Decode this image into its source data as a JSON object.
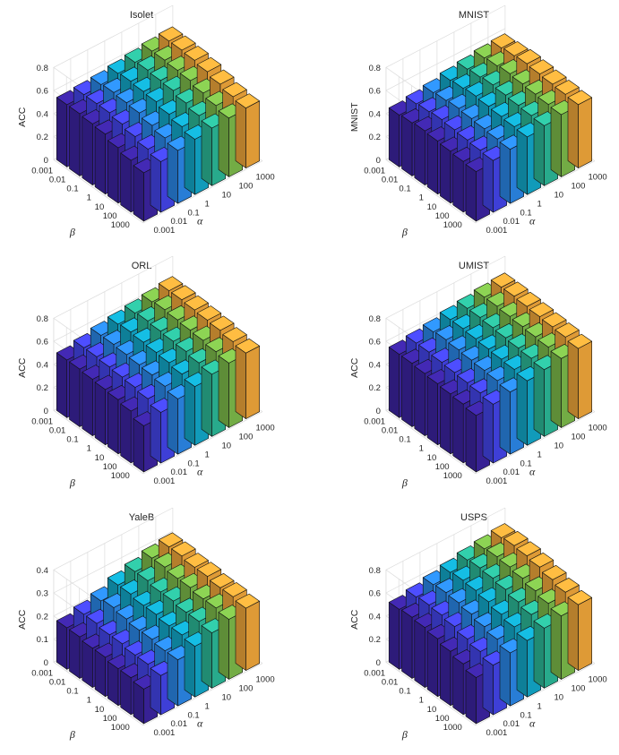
{
  "figure": {
    "greek_labels": {
      "alpha": "α",
      "beta": "β"
    },
    "colors": [
      "#3e26a8",
      "#4748f4",
      "#2d8ef3",
      "#13b0d3",
      "#2ec19f",
      "#83c44e",
      "#fcaf3d",
      "#f8f91f"
    ]
  },
  "chart_data": [
    {
      "type": "bar3d",
      "title": "Isolet",
      "zlabel": "ACC",
      "xlabel": "α",
      "ylabel": "β",
      "x_categories": [
        "0.001",
        "0.01",
        "0.1",
        "1",
        "10",
        "100",
        "1000"
      ],
      "y_categories": [
        "0.001",
        "0.01",
        "0.1",
        "1",
        "10",
        "100",
        "1000"
      ],
      "zlim": [
        0,
        0.8
      ],
      "zticks": [
        0,
        0.2,
        0.4,
        0.6,
        0.8
      ],
      "zticklabels": [
        "0",
        "0.2",
        "0.4",
        "0.6",
        "0.8"
      ],
      "grid": true,
      "values": [
        [
          0.54,
          0.55,
          0.56,
          0.58,
          0.6,
          0.62,
          0.63
        ],
        [
          0.54,
          0.55,
          0.57,
          0.59,
          0.61,
          0.62,
          0.63
        ],
        [
          0.53,
          0.55,
          0.56,
          0.58,
          0.6,
          0.61,
          0.62
        ],
        [
          0.52,
          0.53,
          0.55,
          0.57,
          0.59,
          0.6,
          0.6
        ],
        [
          0.48,
          0.5,
          0.52,
          0.54,
          0.56,
          0.57,
          0.57
        ],
        [
          0.45,
          0.47,
          0.49,
          0.51,
          0.53,
          0.54,
          0.54
        ],
        [
          0.42,
          0.44,
          0.46,
          0.48,
          0.5,
          0.51,
          0.52
        ]
      ]
    },
    {
      "type": "bar3d",
      "title": "MNIST",
      "zlabel": "MNIST",
      "xlabel": "α",
      "ylabel": "β",
      "x_categories": [
        "0.001",
        "0.01",
        "0.1",
        "1",
        "10",
        "100",
        "1000"
      ],
      "y_categories": [
        "0.001",
        "0.01",
        "0.1",
        "1",
        "10",
        "100",
        "1000"
      ],
      "zlim": [
        0,
        0.8
      ],
      "zticks": [
        0,
        0.2,
        0.4,
        0.6,
        0.8
      ],
      "zticklabels": [
        "0",
        "0.2",
        "0.4",
        "0.6",
        "0.8"
      ],
      "grid": true,
      "values": [
        [
          0.45,
          0.47,
          0.49,
          0.52,
          0.54,
          0.56,
          0.57
        ],
        [
          0.46,
          0.48,
          0.5,
          0.53,
          0.55,
          0.57,
          0.58
        ],
        [
          0.47,
          0.49,
          0.51,
          0.54,
          0.56,
          0.58,
          0.59
        ],
        [
          0.46,
          0.48,
          0.5,
          0.53,
          0.55,
          0.57,
          0.58
        ],
        [
          0.45,
          0.47,
          0.49,
          0.52,
          0.54,
          0.56,
          0.57
        ],
        [
          0.44,
          0.46,
          0.48,
          0.51,
          0.53,
          0.55,
          0.56
        ],
        [
          0.43,
          0.45,
          0.47,
          0.5,
          0.52,
          0.54,
          0.55
        ]
      ]
    },
    {
      "type": "bar3d",
      "title": "ORL",
      "zlabel": "ACC",
      "xlabel": "α",
      "ylabel": "β",
      "x_categories": [
        "0.001",
        "0.01",
        "0.1",
        "1",
        "10",
        "100",
        "1000"
      ],
      "y_categories": [
        "0.001",
        "0.01",
        "0.1",
        "1",
        "10",
        "100",
        "1000"
      ],
      "zlim": [
        0,
        0.8
      ],
      "zticks": [
        0,
        0.2,
        0.4,
        0.6,
        0.8
      ],
      "zticklabels": [
        "0",
        "0.2",
        "0.4",
        "0.6",
        "0.8"
      ],
      "grid": true,
      "values": [
        [
          0.5,
          0.53,
          0.56,
          0.58,
          0.6,
          0.62,
          0.64
        ],
        [
          0.5,
          0.53,
          0.56,
          0.59,
          0.61,
          0.63,
          0.64
        ],
        [
          0.49,
          0.52,
          0.55,
          0.58,
          0.6,
          0.62,
          0.63
        ],
        [
          0.48,
          0.51,
          0.54,
          0.57,
          0.59,
          0.61,
          0.62
        ],
        [
          0.47,
          0.5,
          0.53,
          0.56,
          0.58,
          0.6,
          0.61
        ],
        [
          0.45,
          0.48,
          0.51,
          0.54,
          0.56,
          0.58,
          0.59
        ],
        [
          0.4,
          0.44,
          0.48,
          0.51,
          0.54,
          0.56,
          0.57
        ]
      ]
    },
    {
      "type": "bar3d",
      "title": "UMIST",
      "zlabel": "ACC",
      "xlabel": "α",
      "ylabel": "β",
      "x_categories": [
        "0.001",
        "0.01",
        "0.1",
        "1",
        "10",
        "100",
        "1000"
      ],
      "y_categories": [
        "0.001",
        "0.01",
        "0.1",
        "1",
        "10",
        "100",
        "1000"
      ],
      "zlim": [
        0,
        0.8
      ],
      "zticks": [
        0,
        0.2,
        0.4,
        0.6,
        0.8
      ],
      "zticklabels": [
        "0",
        "0.2",
        "0.4",
        "0.6",
        "0.8"
      ],
      "grid": true,
      "values": [
        [
          0.55,
          0.57,
          0.59,
          0.62,
          0.64,
          0.66,
          0.67
        ],
        [
          0.55,
          0.57,
          0.6,
          0.62,
          0.64,
          0.66,
          0.67
        ],
        [
          0.54,
          0.56,
          0.59,
          0.61,
          0.63,
          0.65,
          0.66
        ],
        [
          0.53,
          0.55,
          0.58,
          0.6,
          0.62,
          0.64,
          0.65
        ],
        [
          0.52,
          0.54,
          0.57,
          0.59,
          0.61,
          0.63,
          0.64
        ],
        [
          0.51,
          0.53,
          0.56,
          0.58,
          0.6,
          0.62,
          0.63
        ],
        [
          0.49,
          0.51,
          0.54,
          0.56,
          0.58,
          0.6,
          0.61
        ]
      ]
    },
    {
      "type": "bar3d",
      "title": "YaleB",
      "zlabel": "ACC",
      "xlabel": "α",
      "ylabel": "β",
      "x_categories": [
        "0.001",
        "0.01",
        "0.1",
        "1",
        "10",
        "100",
        "1000"
      ],
      "y_categories": [
        "0.001",
        "0.01",
        "0.1",
        "1",
        "10",
        "100",
        "1000"
      ],
      "zlim": [
        0,
        0.4
      ],
      "zticks": [
        0,
        0.1,
        0.2,
        0.3,
        0.4
      ],
      "zticklabels": [
        "0",
        "0.1",
        "0.2",
        "0.3",
        "0.4"
      ],
      "grid": true,
      "values": [
        [
          0.18,
          0.2,
          0.22,
          0.25,
          0.27,
          0.29,
          0.3
        ],
        [
          0.18,
          0.2,
          0.23,
          0.25,
          0.27,
          0.29,
          0.3
        ],
        [
          0.17,
          0.19,
          0.22,
          0.24,
          0.26,
          0.28,
          0.29
        ],
        [
          0.17,
          0.19,
          0.21,
          0.24,
          0.26,
          0.28,
          0.29
        ],
        [
          0.16,
          0.18,
          0.21,
          0.23,
          0.25,
          0.27,
          0.28
        ],
        [
          0.16,
          0.18,
          0.2,
          0.23,
          0.25,
          0.27,
          0.28
        ],
        [
          0.15,
          0.17,
          0.2,
          0.22,
          0.24,
          0.26,
          0.27
        ]
      ]
    },
    {
      "type": "bar3d",
      "title": "USPS",
      "zlabel": "ACC",
      "xlabel": "α",
      "ylabel": "β",
      "x_categories": [
        "0.001",
        "0.01",
        "0.1",
        "1",
        "10",
        "100",
        "1000"
      ],
      "y_categories": [
        "0.001",
        "0.01",
        "0.1",
        "1",
        "10",
        "100",
        "1000"
      ],
      "zlim": [
        0,
        0.8
      ],
      "zticks": [
        0,
        0.2,
        0.4,
        0.6,
        0.8
      ],
      "zticklabels": [
        "0",
        "0.2",
        "0.4",
        "0.6",
        "0.8"
      ],
      "grid": true,
      "values": [
        [
          0.52,
          0.55,
          0.58,
          0.61,
          0.64,
          0.66,
          0.68
        ],
        [
          0.53,
          0.56,
          0.59,
          0.62,
          0.65,
          0.67,
          0.69
        ],
        [
          0.52,
          0.55,
          0.58,
          0.61,
          0.64,
          0.66,
          0.68
        ],
        [
          0.5,
          0.53,
          0.56,
          0.59,
          0.62,
          0.64,
          0.66
        ],
        [
          0.47,
          0.5,
          0.53,
          0.56,
          0.59,
          0.61,
          0.63
        ],
        [
          0.44,
          0.47,
          0.5,
          0.53,
          0.56,
          0.58,
          0.6
        ],
        [
          0.4,
          0.43,
          0.46,
          0.49,
          0.52,
          0.55,
          0.57
        ]
      ]
    }
  ]
}
